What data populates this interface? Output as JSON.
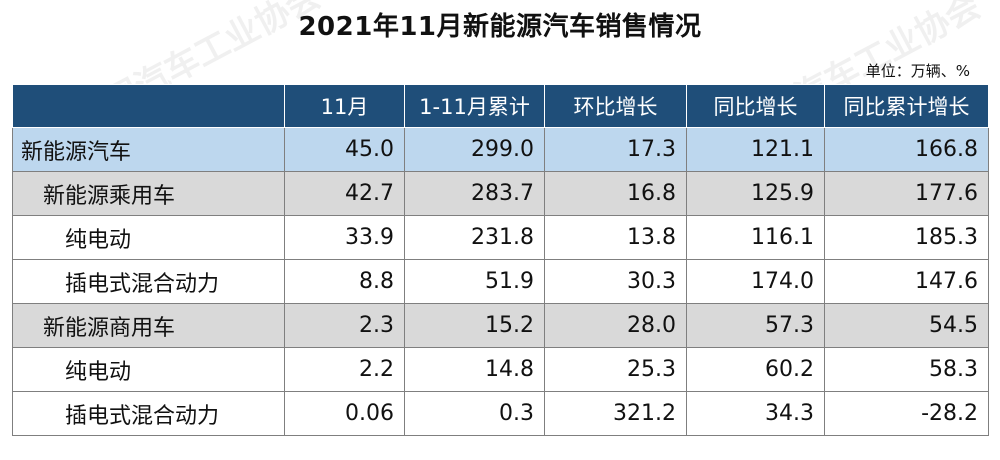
{
  "title": "2021年11月新能源汽车销售情况",
  "unit": "单位：万辆、%",
  "watermark": "中国汽车工业协会",
  "columns": [
    "",
    "11月",
    "1-11月累计",
    "环比增长",
    "同比增长",
    "同比累计增长"
  ],
  "rows": [
    {
      "name": "新能源汽车",
      "level": 0,
      "values": [
        "45.0",
        "299.0",
        "17.3",
        "121.1",
        "166.8"
      ]
    },
    {
      "name": "新能源乘用车",
      "level": 1,
      "values": [
        "42.7",
        "283.7",
        "16.8",
        "125.9",
        "177.6"
      ]
    },
    {
      "name": "纯电动",
      "level": 2,
      "values": [
        "33.9",
        "231.8",
        "13.8",
        "116.1",
        "185.3"
      ]
    },
    {
      "name": "插电式混合动力",
      "level": 2,
      "values": [
        "8.8",
        "51.9",
        "30.3",
        "174.0",
        "147.6"
      ]
    },
    {
      "name": "新能源商用车",
      "level": 1,
      "values": [
        "2.3",
        "15.2",
        "28.0",
        "57.3",
        "54.5"
      ]
    },
    {
      "name": "纯电动",
      "level": 2,
      "values": [
        "2.2",
        "14.8",
        "25.3",
        "60.2",
        "58.3"
      ]
    },
    {
      "name": "插电式混合动力",
      "level": 2,
      "values": [
        "0.06",
        "0.3",
        "321.2",
        "34.3",
        "-28.2"
      ]
    }
  ],
  "colors": {
    "header": "#1f4e79",
    "total_row": "#bdd7ee",
    "subtotal_row": "#d9d9d9"
  }
}
